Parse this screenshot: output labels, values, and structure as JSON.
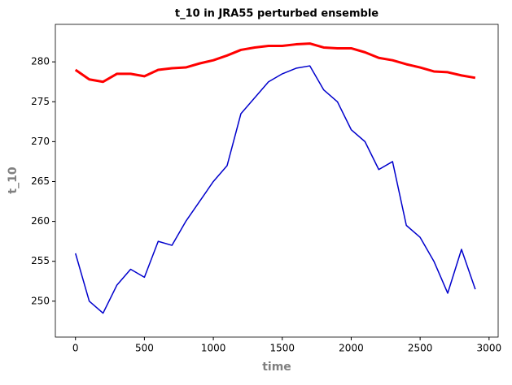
{
  "chart_data": {
    "type": "line",
    "title": "t_10 in JRA55 perturbed ensemble",
    "x_label": "time",
    "y_label": "t_10",
    "x": [
      0,
      100,
      200,
      300,
      400,
      500,
      600,
      700,
      800,
      900,
      1000,
      1100,
      1200,
      1300,
      1400,
      1500,
      1600,
      1700,
      1800,
      1900,
      2000,
      2100,
      2200,
      2300,
      2400,
      2500,
      2600,
      2700,
      2800,
      2900
    ],
    "series": [
      {
        "color": "#ff0000",
        "values": [
          279,
          277.8,
          277.5,
          278.5,
          278.5,
          278.2,
          279,
          279.2,
          279.3,
          279.8,
          280.2,
          280.8,
          281.5,
          281.8,
          282,
          282,
          282.2,
          282.3,
          281.8,
          281.7,
          281.7,
          281.2,
          280.5,
          280.2,
          279.7,
          279.3,
          278.8,
          278.7,
          278.3,
          278
        ]
      },
      {
        "color": "#0000cc",
        "values": [
          256,
          250,
          248.5,
          252,
          254,
          253,
          257.5,
          257,
          260,
          262.5,
          265,
          267,
          273.5,
          275.5,
          277.5,
          278.5,
          279.2,
          279.5,
          276.5,
          275,
          271.5,
          270,
          266.5,
          267.5,
          259.5,
          258,
          255,
          251,
          256.5,
          251.5
        ]
      }
    ],
    "xlim": [
      -146,
      3066
    ],
    "ylim": [
      245.5,
      284.7
    ],
    "xticks": [
      0,
      500,
      1000,
      1500,
      2000,
      2500,
      3000
    ],
    "yticks": [
      250,
      255,
      260,
      265,
      270,
      275,
      280
    ]
  }
}
